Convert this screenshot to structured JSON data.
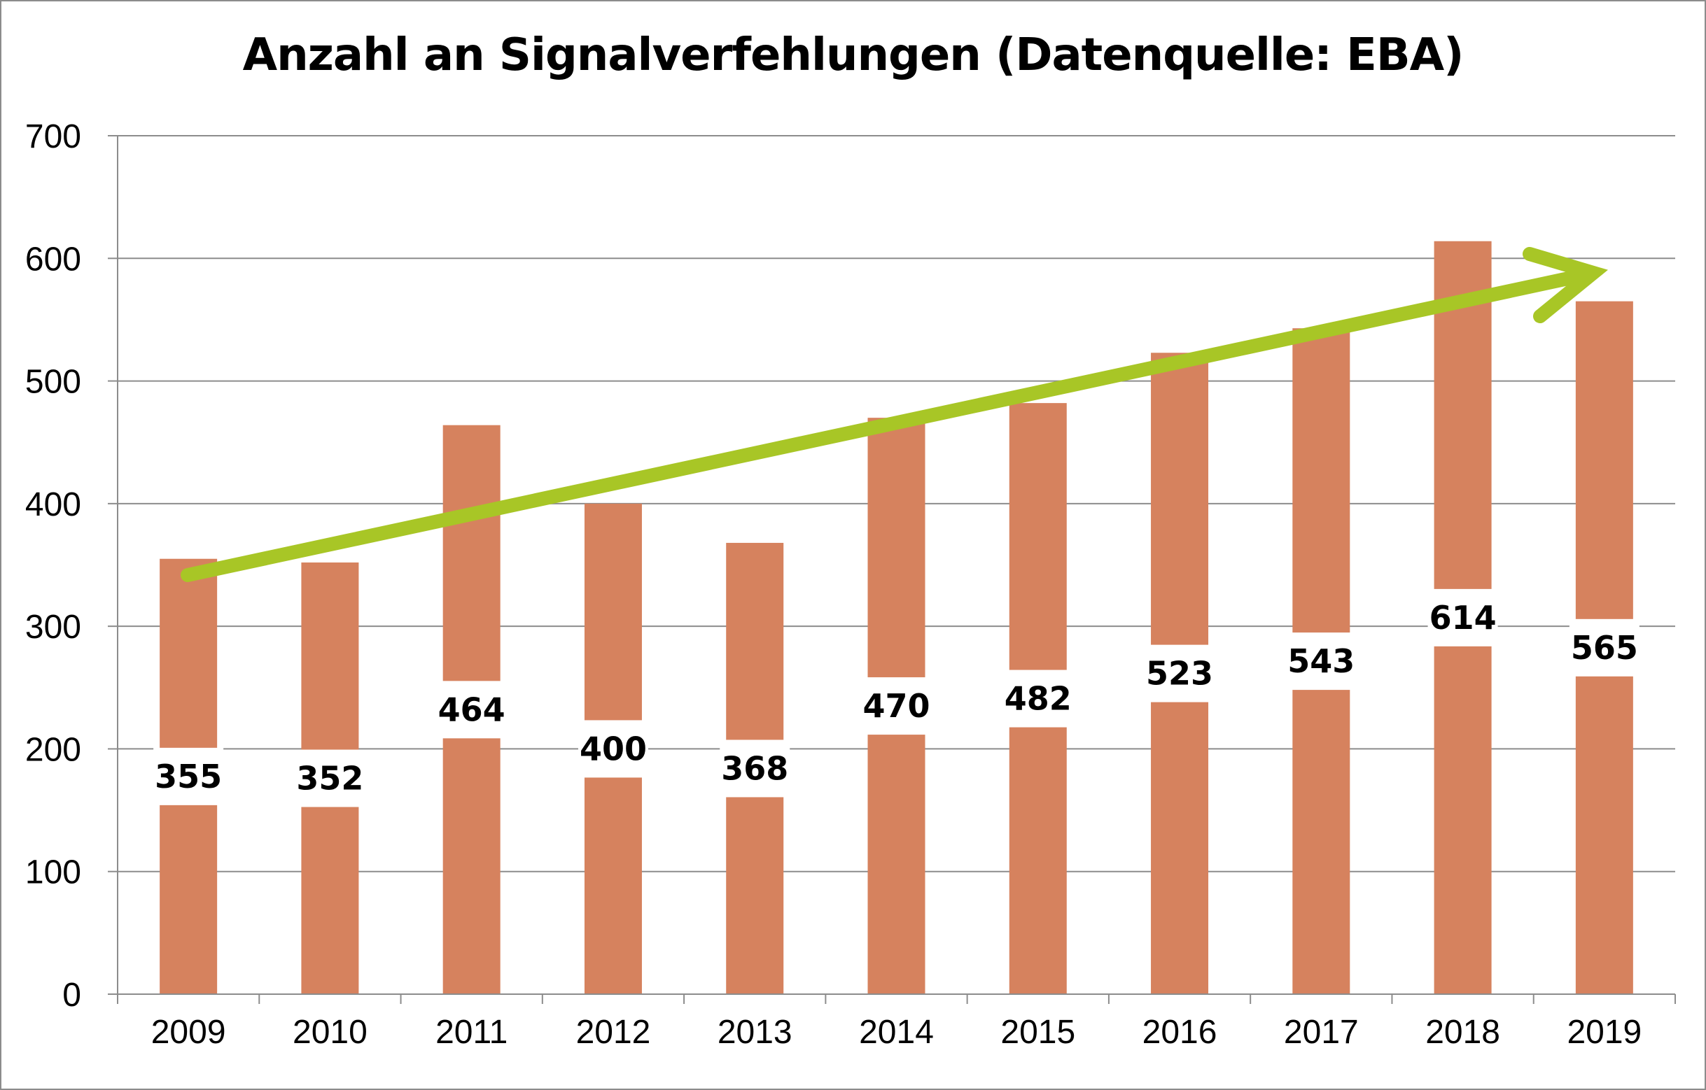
{
  "chart_data": {
    "type": "bar",
    "title": "Anzahl an Signalverfehlungen (Datenquelle: EBA)",
    "xlabel": "",
    "ylabel": "",
    "categories": [
      "2009",
      "2010",
      "2011",
      "2012",
      "2013",
      "2014",
      "2015",
      "2016",
      "2017",
      "2018",
      "2019"
    ],
    "values": [
      355,
      352,
      464,
      400,
      368,
      470,
      482,
      523,
      543,
      614,
      565
    ],
    "ylim": [
      0,
      700
    ],
    "yticks": [
      0,
      100,
      200,
      300,
      400,
      500,
      600,
      700
    ],
    "grid": true,
    "legend": "none",
    "data_labels": true,
    "annotation": "upward trend arrow",
    "colors": {
      "bar": "#d6825e",
      "trend_arrow": "#a8c626",
      "grid": "#8c8c8c",
      "label_background": "#ffffff"
    }
  }
}
